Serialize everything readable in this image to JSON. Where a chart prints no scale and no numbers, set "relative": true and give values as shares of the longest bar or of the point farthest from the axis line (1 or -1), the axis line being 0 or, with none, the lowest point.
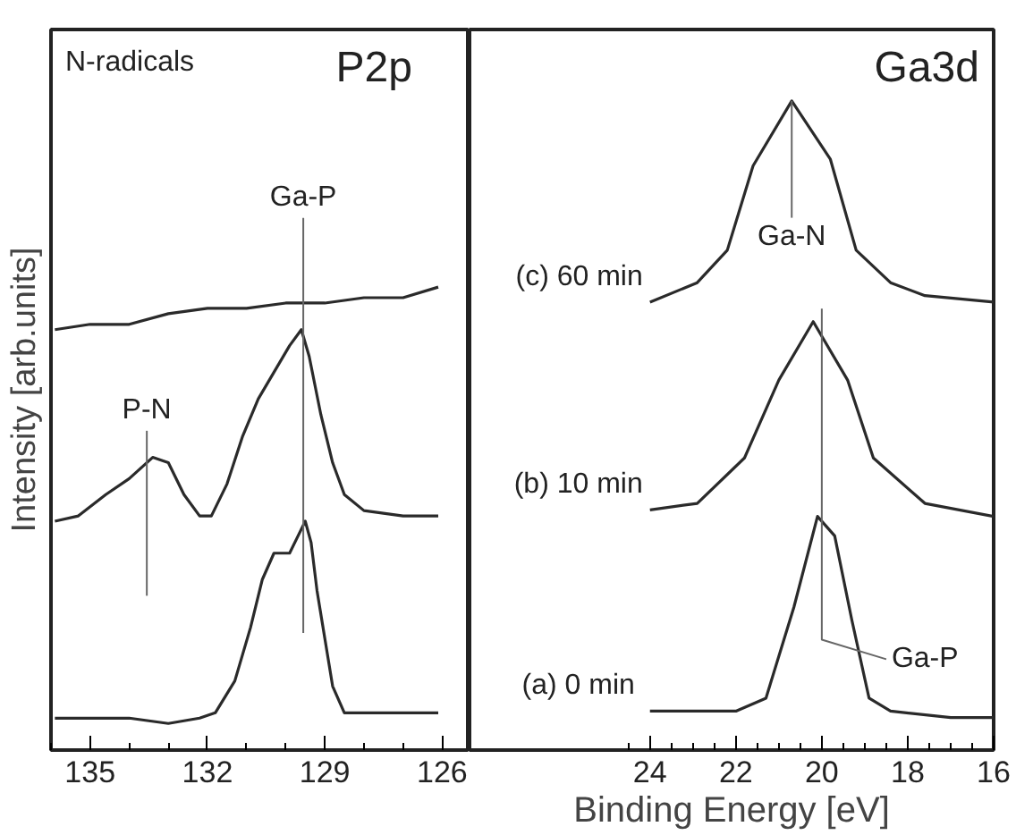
{
  "chart_data": [
    {
      "type": "line",
      "relative": true,
      "title": "P2p",
      "subtitle": "N-radicals",
      "ylabel": "Intensity [arb.units]",
      "xlim": [
        136,
        125.3
      ],
      "xticks": [
        135,
        132,
        129,
        126
      ],
      "tick_labels": "x",
      "legend": false,
      "marker": "none",
      "line_style": "solid",
      "series": [
        {
          "color": "#2a2a2a",
          "x": [
            135.9,
            135,
            134,
            133,
            132.2,
            131.8,
            131.3,
            130.9,
            130.6,
            130.3,
            130.1,
            129.9,
            129.7,
            129.5,
            129.35,
            129.2,
            129.0,
            128.8,
            128.5,
            128,
            127,
            126.1
          ],
          "values": [
            0.06,
            0.06,
            0.06,
            0.05,
            0.06,
            0.07,
            0.13,
            0.23,
            0.32,
            0.37,
            0.37,
            0.37,
            0.4,
            0.43,
            0.39,
            0.3,
            0.21,
            0.12,
            0.07,
            0.07,
            0.07,
            0.07
          ]
        },
        {
          "color": "#2a2a2a",
          "x": [
            135.9,
            135.3,
            134.6,
            134,
            133.4,
            133,
            132.6,
            132.2,
            131.9,
            131.5,
            131.1,
            130.7,
            130.3,
            129.9,
            129.6,
            129.4,
            129.1,
            128.8,
            128.5,
            128,
            127,
            126.1
          ],
          "values": [
            0.43,
            0.44,
            0.48,
            0.51,
            0.55,
            0.54,
            0.48,
            0.44,
            0.44,
            0.5,
            0.59,
            0.66,
            0.71,
            0.76,
            0.79,
            0.74,
            0.63,
            0.54,
            0.48,
            0.45,
            0.44,
            0.44
          ]
        },
        {
          "color": "#2a2a2a",
          "x": [
            135.9,
            135,
            134,
            133,
            132,
            131,
            130,
            129,
            128,
            127,
            126.1
          ],
          "values": [
            0.79,
            0.8,
            0.8,
            0.82,
            0.83,
            0.83,
            0.84,
            0.84,
            0.85,
            0.85,
            0.87
          ]
        },
        {
          "name": "Ga-P",
          "color": "#666666",
          "x": [
            129.55,
            129.55
          ],
          "values": [
            0.22,
            1.0
          ]
        },
        {
          "name": "P-N",
          "color": "#666666",
          "x": [
            133.55,
            133.55
          ],
          "values": [
            0.29,
            0.6
          ]
        }
      ]
    },
    {
      "type": "line",
      "relative": true,
      "title": "Ga3d",
      "xlabel": "Binding Energy [eV]",
      "xlim": [
        28.2,
        16
      ],
      "xticks": [
        24,
        22,
        20,
        18,
        16
      ],
      "tick_labels": "x",
      "legend": false,
      "marker": "none",
      "line_style": "solid",
      "series": [
        {
          "name": "(a)  0 min",
          "color": "#2a2a2a",
          "x": [
            24,
            23,
            22,
            21.3,
            20.65,
            20.1,
            19.7,
            19.3,
            18.9,
            18.4,
            17,
            16
          ],
          "values": [
            0.06,
            0.06,
            0.06,
            0.08,
            0.22,
            0.36,
            0.33,
            0.2,
            0.08,
            0.06,
            0.05,
            0.05
          ]
        },
        {
          "name": "(b) 10 min",
          "color": "#2a2a2a",
          "x": [
            24,
            22.9,
            21.8,
            21.0,
            20.2,
            19.4,
            18.8,
            17.6,
            16
          ],
          "values": [
            0.37,
            0.38,
            0.45,
            0.57,
            0.66,
            0.57,
            0.45,
            0.38,
            0.36
          ]
        },
        {
          "name": "(c) 60 min",
          "color": "#2a2a2a",
          "x": [
            24,
            22.9,
            22.2,
            21.6,
            20.7,
            19.8,
            19.2,
            18.4,
            17.6,
            16
          ],
          "values": [
            0.69,
            0.72,
            0.77,
            0.9,
            1.0,
            0.91,
            0.77,
            0.72,
            0.7,
            0.69
          ]
        },
        {
          "name": "Ga-N",
          "color": "#666666",
          "x": [
            20.7,
            20.7
          ],
          "values": [
            1.0,
            0.82
          ]
        },
        {
          "name": "Ga-P",
          "color": "#666666",
          "x": [
            20.0,
            20.0,
            18.5
          ],
          "values": [
            0.68,
            0.17,
            0.14
          ]
        }
      ]
    }
  ]
}
